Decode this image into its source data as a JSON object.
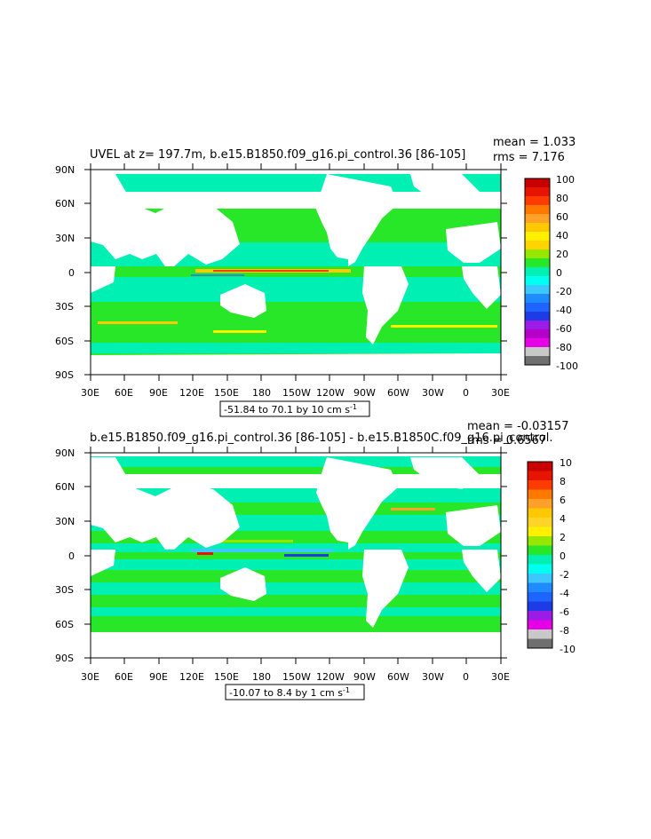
{
  "panels": [
    {
      "title": "UVEL at z= 197.7m, b.e15.B1850.f09_g16.pi_control.36 [86-105]",
      "mean_label": "mean = 1.033",
      "rms_label": "rms = 7.176",
      "range_label": "-51.84 to 70.1 by 10 cm s",
      "range_unit_sup": "-1",
      "colorbar_labels": [
        "100",
        "80",
        "60",
        "40",
        "20",
        "0",
        "-20",
        "-40",
        "-60",
        "-80",
        "-100"
      ]
    },
    {
      "title": "b.e15.B1850.f09_g16.pi_control.36 [86-105] - b.e15.B1850C.f09_g16.pi_control.",
      "mean_label": "mean = -0.03157",
      "rms_label": "rms = 0.6567",
      "range_label": "-10.07 to 8.4 by 1 cm s",
      "range_unit_sup": "-1",
      "colorbar_labels": [
        "10",
        "8",
        "6",
        "4",
        "2",
        "0",
        "-2",
        "-4",
        "-6",
        "-8",
        "-10"
      ]
    }
  ],
  "axes": {
    "lat_labels": [
      "90N",
      "60N",
      "30N",
      "0",
      "30S",
      "60S",
      "90S"
    ],
    "lon_labels": [
      "30E",
      "60E",
      "90E",
      "120E",
      "150E",
      "180",
      "150W",
      "120W",
      "90W",
      "60W",
      "30W",
      "0",
      "30E"
    ]
  },
  "colors": {
    "scale": [
      "#6f6f6f",
      "#c8c8c8",
      "#e600e6",
      "#9b1ce6",
      "#1e3ce6",
      "#1e8cff",
      "#3cc8ff",
      "#00fff0",
      "#00f0b4",
      "#28e628",
      "#96e600",
      "#fff000",
      "#ffc800",
      "#ffa028",
      "#ff7800",
      "#ff3c00",
      "#e61400",
      "#c80000"
    ],
    "ocean_a": "#00f0b4",
    "ocean_b": "#28e628",
    "land": "#ffffff"
  }
}
